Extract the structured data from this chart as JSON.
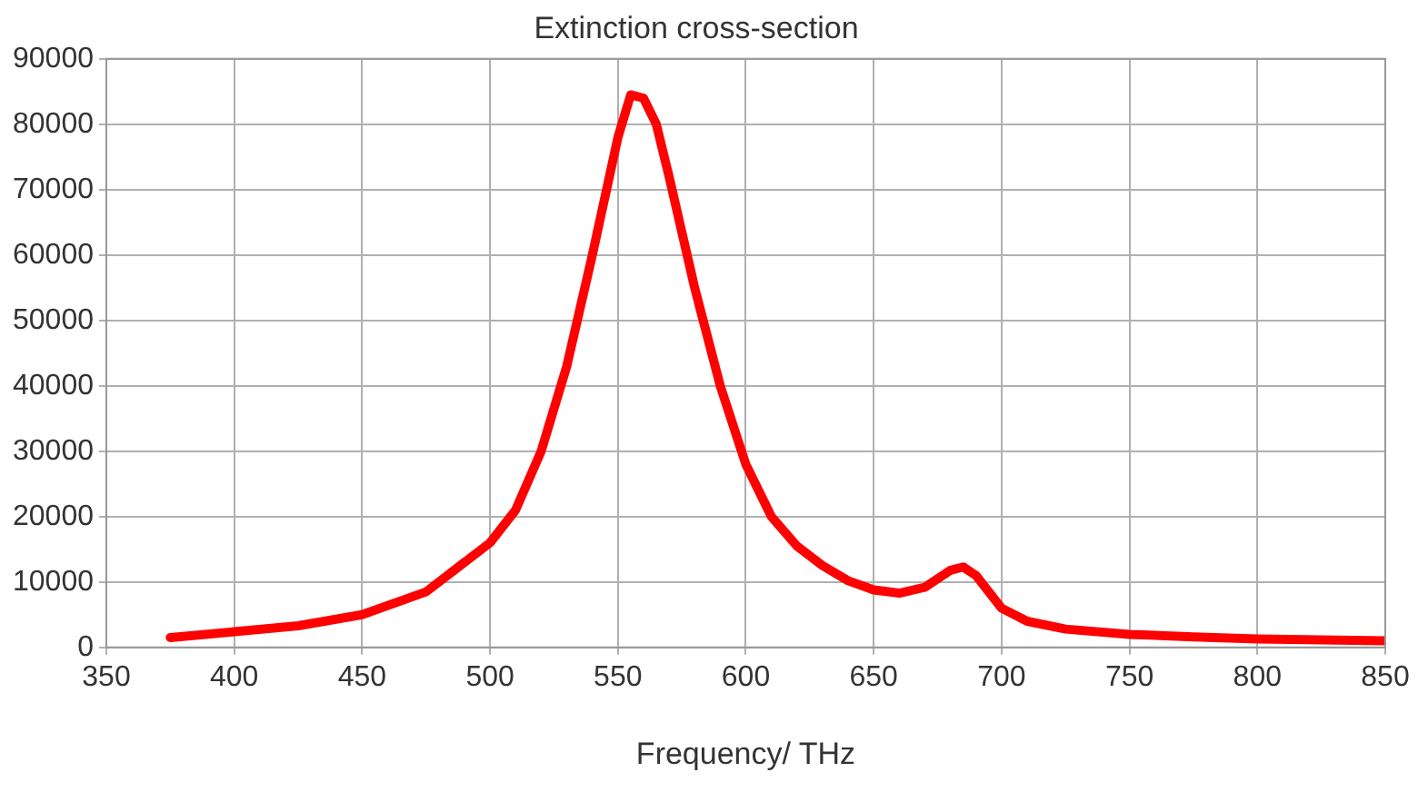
{
  "chart_data": {
    "type": "line",
    "title": "Extinction cross-section",
    "xlabel": "Frequency/ THz",
    "x": [
      375,
      400,
      425,
      450,
      475,
      500,
      510,
      520,
      530,
      540,
      550,
      555,
      560,
      565,
      570,
      580,
      590,
      600,
      610,
      620,
      630,
      640,
      650,
      660,
      670,
      680,
      685,
      690,
      700,
      710,
      725,
      750,
      775,
      800,
      850
    ],
    "series": [
      {
        "color": "#ff0000",
        "values": [
          1500,
          2400,
          3300,
          5000,
          8500,
          16000,
          21000,
          30000,
          43000,
          60000,
          78000,
          84500,
          84000,
          80000,
          72000,
          55000,
          40000,
          28000,
          20000,
          15500,
          12500,
          10200,
          8800,
          8300,
          9200,
          11800,
          12300,
          11000,
          6000,
          4000,
          2800,
          2000,
          1600,
          1300,
          1000
        ]
      }
    ],
    "xlim": [
      350,
      850
    ],
    "xticks": [
      350,
      400,
      450,
      500,
      550,
      600,
      650,
      700,
      750,
      800,
      850
    ],
    "ylim": [
      0,
      90000
    ],
    "yticks": [
      0,
      10000,
      20000,
      30000,
      40000,
      50000,
      60000,
      70000,
      80000,
      90000
    ],
    "grid": true,
    "legend": false,
    "marker": "none",
    "line_style": "solid"
  }
}
